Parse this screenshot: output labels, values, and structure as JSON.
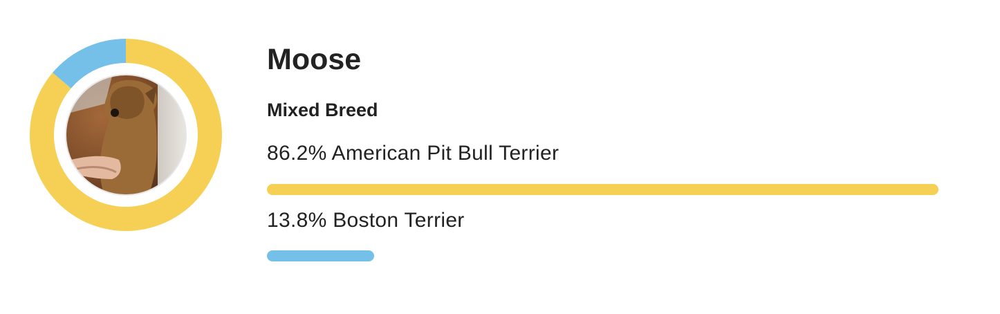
{
  "profile": {
    "name": "Moose",
    "breed_type": "Mixed Breed",
    "photo_icon": "dog-photo"
  },
  "colors": {
    "pit_bull": "#F6D055",
    "boston": "#74C0E8",
    "text": "#222222"
  },
  "chart_data": {
    "type": "donut",
    "categories": [
      "American Pit Bull Terrier",
      "Boston Terrier"
    ],
    "values": [
      86.2,
      13.8
    ],
    "unit": "%",
    "colors": [
      "#F6D055",
      "#74C0E8"
    ],
    "start_angle_deg": 0,
    "direction": "clockwise"
  },
  "breeds": [
    {
      "percent_label": "86.2%",
      "name": "American Pit Bull Terrier",
      "text": "86.2% American Pit Bull Terrier",
      "value": 86.2,
      "color": "#F6D055"
    },
    {
      "percent_label": "13.8%",
      "name": "Boston Terrier",
      "text": "13.8% Boston Terrier",
      "value": 13.8,
      "color": "#74C0E8"
    }
  ]
}
